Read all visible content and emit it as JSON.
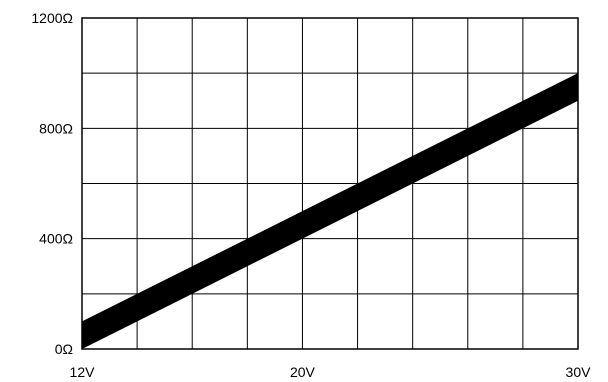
{
  "chart_data": {
    "type": "area",
    "title": "",
    "xlabel": "",
    "ylabel": "",
    "xlim": [
      12,
      30
    ],
    "ylim": [
      0,
      1200
    ],
    "x_ticks": [
      {
        "value": 12,
        "label": "12V"
      },
      {
        "value": 20,
        "label": "20V"
      },
      {
        "value": 30,
        "label": "30V"
      }
    ],
    "y_ticks": [
      {
        "value": 0,
        "label": "0Ω"
      },
      {
        "value": 400,
        "label": "400Ω"
      },
      {
        "value": 800,
        "label": "800Ω"
      },
      {
        "value": 1200,
        "label": "1200Ω"
      }
    ],
    "grid": true,
    "x_grid_step": 2,
    "y_grid_step": 200,
    "series": [
      {
        "x": [
          12,
          30
        ],
        "upper": [
          100,
          1000
        ],
        "lower": [
          0,
          900
        ]
      }
    ],
    "colors": {
      "band": "#000000",
      "grid": "#000000",
      "background": "#ffffff"
    }
  }
}
